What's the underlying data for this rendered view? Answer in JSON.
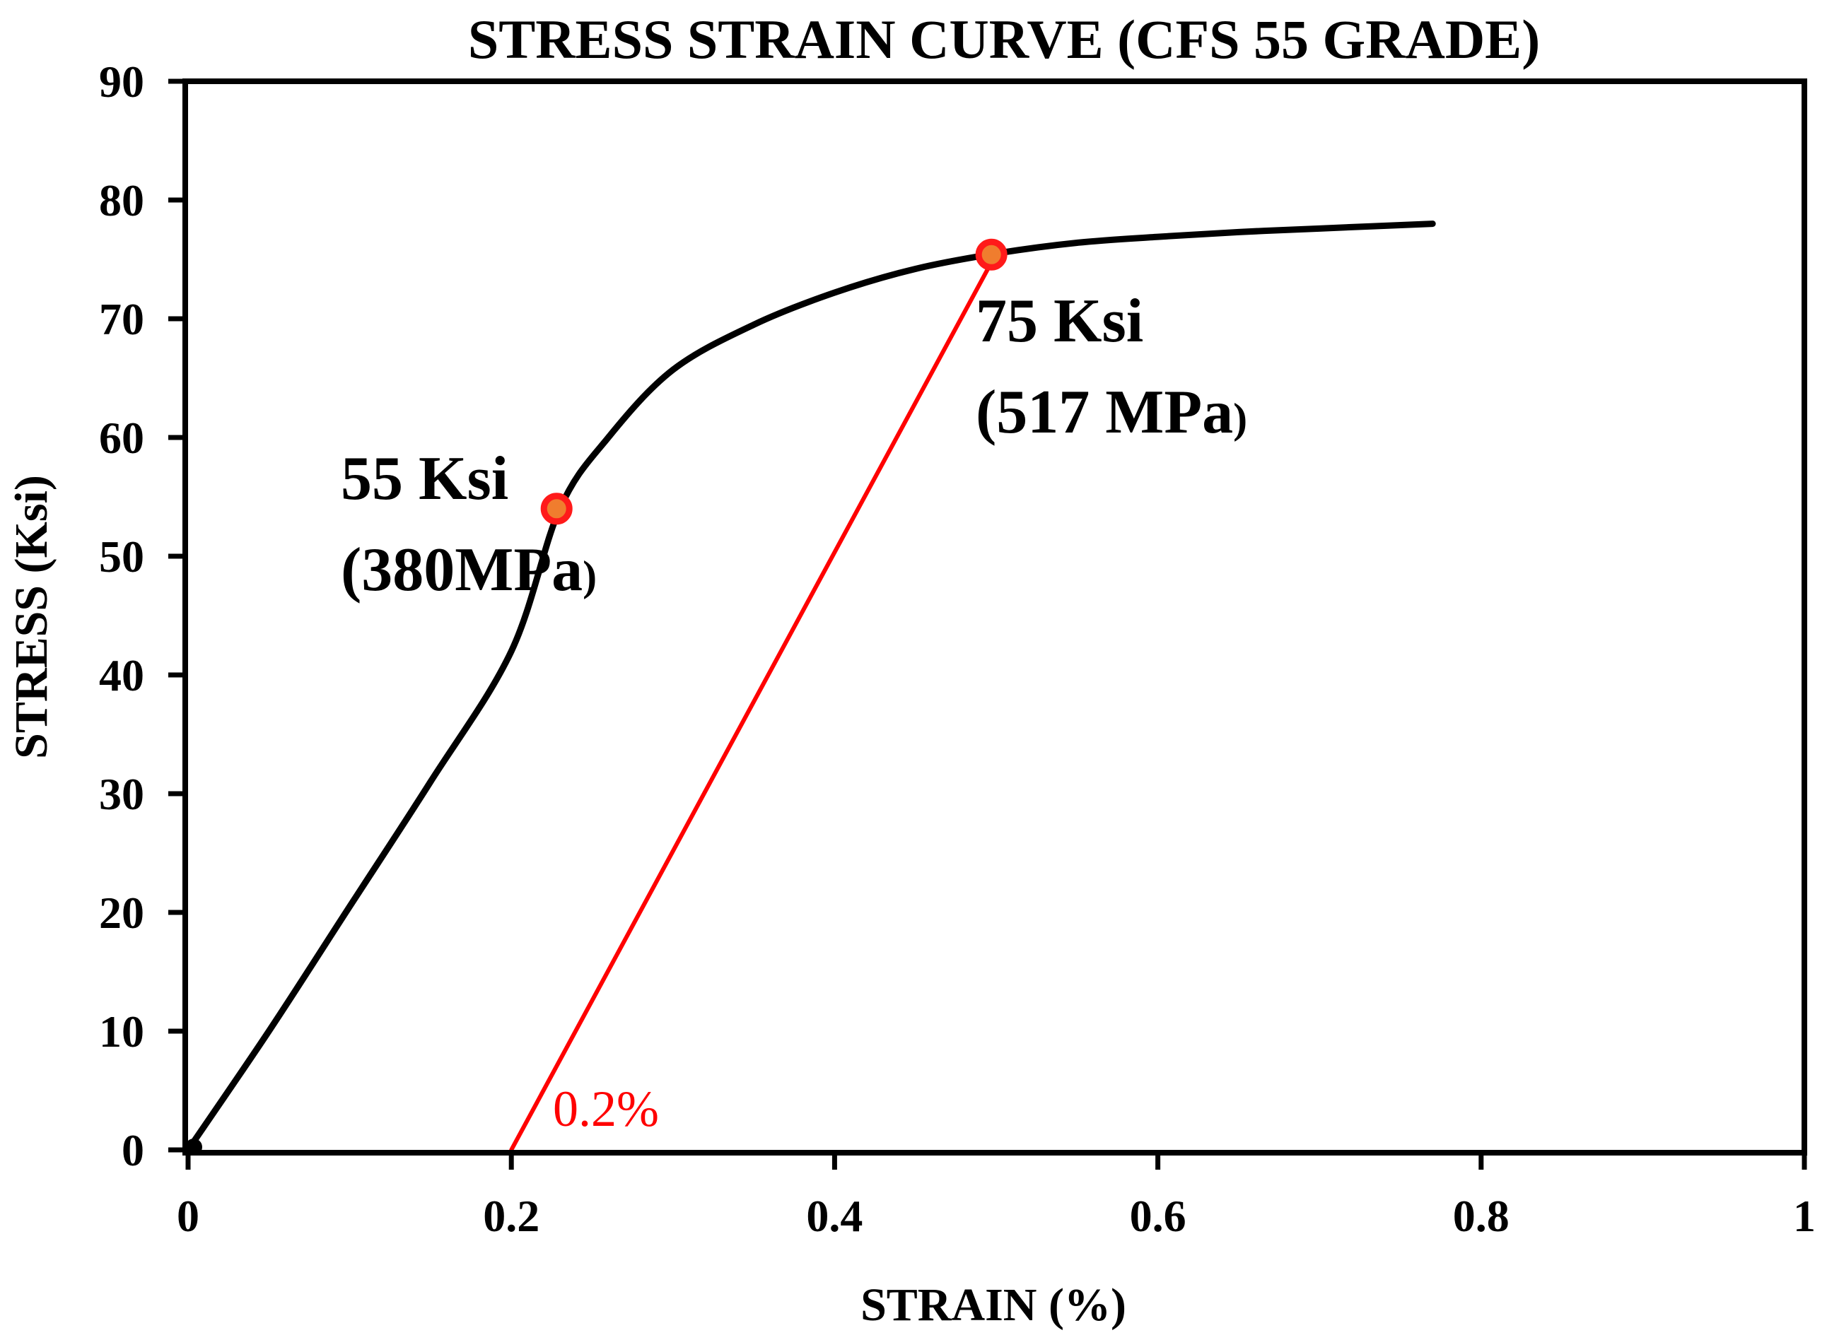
{
  "chart_data": {
    "type": "line",
    "title": "STRESS STRAIN CURVE (CFS 55 GRADE)",
    "xlabel": "STRAIN (%)",
    "ylabel": "STRESS (Ksi)",
    "xlim": [
      0,
      1
    ],
    "ylim": [
      0,
      90
    ],
    "x_ticks": [
      0,
      0.2,
      0.4,
      0.6,
      0.8,
      1
    ],
    "x_tick_labels": [
      "0",
      "0.2",
      "0.4",
      "0.6",
      "0.8",
      "1"
    ],
    "y_ticks": [
      0,
      10,
      20,
      30,
      40,
      50,
      60,
      70,
      80,
      90
    ],
    "y_tick_labels": [
      "0",
      "10",
      "20",
      "30",
      "40",
      "50",
      "60",
      "70",
      "80",
      "90"
    ],
    "grid": false,
    "series": [
      {
        "name": "Stress-strain curve",
        "color": "#000000",
        "x": [
          0,
          0.05,
          0.1,
          0.15,
          0.2,
          0.23,
          0.26,
          0.3,
          0.35,
          0.4,
          0.45,
          0.5,
          0.55,
          0.6,
          0.65,
          0.7,
          0.77
        ],
        "y": [
          0,
          10,
          20.5,
          31,
          42,
          54,
          60,
          65.7,
          69.5,
          72.2,
          74.2,
          75.5,
          76.4,
          76.9,
          77.3,
          77.6,
          78
        ]
      },
      {
        "name": "0.2% offset line",
        "color": "#ff0000",
        "x": [
          0.2,
          0.5
        ],
        "y": [
          0,
          75.5
        ]
      }
    ],
    "markers": [
      {
        "name": "Proportional limit",
        "x": 0.228,
        "y": 54,
        "fill": "#f07d2e",
        "stroke": "#ff1a1a"
      },
      {
        "name": "Yield point",
        "x": 0.497,
        "y": 75.4,
        "fill": "#f07d2e",
        "stroke": "#ff1a1a"
      }
    ],
    "annotations": [
      {
        "name": "annotation-55ksi",
        "line1": "55 Ksi",
        "line2_main": "(380MPa",
        "line2_close": ")"
      },
      {
        "name": "annotation-75ksi",
        "line1": "75 Ksi",
        "line2_main": "(517 MPa",
        "line2_close": ")"
      },
      {
        "name": "annotation-offset",
        "text": "0.2%",
        "color": "#ff0000"
      }
    ]
  }
}
